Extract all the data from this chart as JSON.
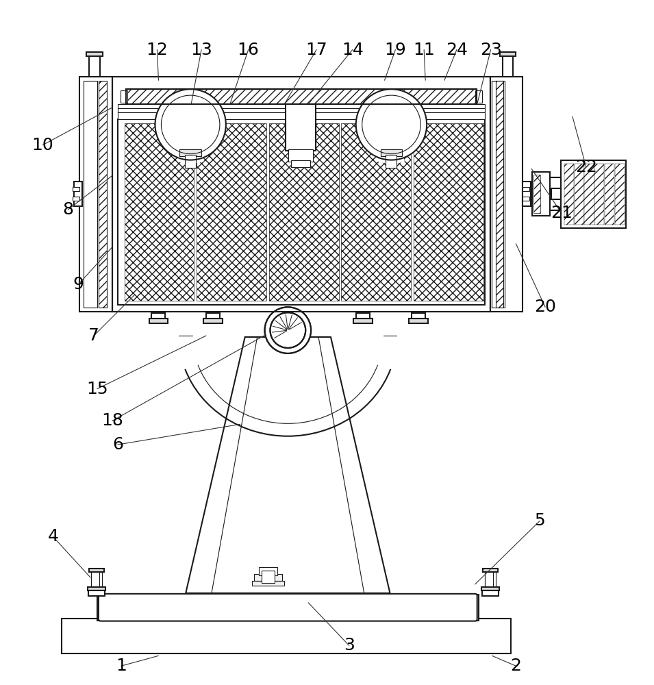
{
  "bg_color": "#ffffff",
  "lc": "#1a1a1a",
  "lw": 1.5,
  "tlw": 0.8,
  "fs": 18,
  "lbl_color": "#000000",
  "labels": [
    [
      "1",
      175,
      975,
      230,
      960
    ],
    [
      "2",
      755,
      975,
      720,
      960
    ],
    [
      "3",
      510,
      945,
      450,
      882
    ],
    [
      "4",
      75,
      785,
      130,
      845
    ],
    [
      "5",
      790,
      762,
      695,
      855
    ],
    [
      "6",
      170,
      650,
      350,
      620
    ],
    [
      "7",
      135,
      490,
      195,
      430
    ],
    [
      "8",
      97,
      305,
      162,
      255
    ],
    [
      "9",
      112,
      415,
      162,
      360
    ],
    [
      "10",
      60,
      210,
      162,
      155
    ],
    [
      "12",
      228,
      70,
      230,
      115
    ],
    [
      "13",
      293,
      70,
      278,
      150
    ],
    [
      "16",
      362,
      70,
      335,
      150
    ],
    [
      "17",
      462,
      70,
      415,
      150
    ],
    [
      "14",
      515,
      70,
      450,
      150
    ],
    [
      "19",
      578,
      70,
      562,
      115
    ],
    [
      "11",
      620,
      70,
      622,
      115
    ],
    [
      "24",
      668,
      70,
      650,
      115
    ],
    [
      "23",
      718,
      70,
      698,
      150
    ],
    [
      "15",
      140,
      568,
      300,
      490
    ],
    [
      "18",
      162,
      615,
      385,
      490
    ],
    [
      "20",
      798,
      448,
      755,
      355
    ],
    [
      "21",
      822,
      310,
      778,
      245
    ],
    [
      "22",
      858,
      242,
      838,
      168
    ]
  ]
}
